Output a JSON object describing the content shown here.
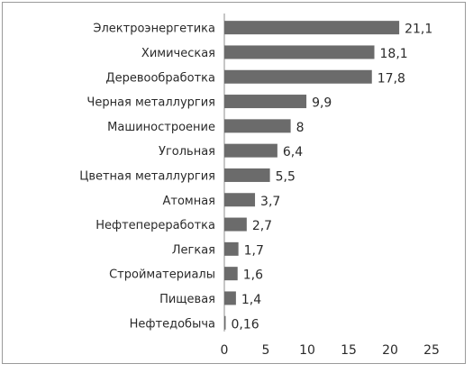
{
  "chart_data": {
    "type": "bar",
    "orientation": "horizontal",
    "categories": [
      "Электроэнергетика",
      "Химическая",
      "Деревообработка",
      "Черная металлургия",
      "Машиностроение",
      "Угольная",
      "Цветная металлургия",
      "Атомная",
      "Нефтепереработка",
      "Легкая",
      "Стройматериалы",
      "Пищевая",
      "Нефтедобыча"
    ],
    "values": [
      21.1,
      18.1,
      17.8,
      9.9,
      8,
      6.4,
      5.5,
      3.7,
      2.7,
      1.7,
      1.6,
      1.4,
      0.16
    ],
    "value_labels": [
      "21,1",
      "18,1",
      "17,8",
      "9,9",
      "8",
      "6,4",
      "5,5",
      "3,7",
      "2,7",
      "1,7",
      "1,6",
      "1,4",
      "0,16"
    ],
    "xticks": [
      0,
      5,
      10,
      15,
      20,
      25
    ],
    "xlim": [
      0,
      25
    ],
    "grid": false,
    "legend": "none",
    "bar_color": "#6b6b6b"
  }
}
